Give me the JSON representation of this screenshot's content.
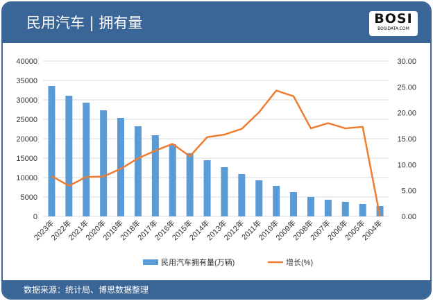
{
  "header": {
    "title": "民用汽车 | 拥有量",
    "logo_text": "BOSI",
    "logo_sub": "BOSIDATA.COM"
  },
  "footer": {
    "source": "数据来源：统计局、博思数据整理"
  },
  "chart_data": {
    "type": "bar+line",
    "categories": [
      "2023年",
      "2022年",
      "2021年",
      "2020年",
      "2019年",
      "2018年",
      "2017年",
      "2016年",
      "2015年",
      "2014年",
      "2013年",
      "2012年",
      "2011年",
      "2010年",
      "2009年",
      "2008年",
      "2007年",
      "2006年",
      "2005年",
      "2004年"
    ],
    "series": [
      {
        "name": "民用汽车拥有量(万辆)",
        "type": "bar",
        "axis": "left",
        "color": "#5b9bd5",
        "values": [
          33570,
          31070,
          29290,
          27320,
          25360,
          23210,
          20890,
          18570,
          16280,
          14460,
          12680,
          10890,
          9290,
          7860,
          6250,
          5000,
          4290,
          3750,
          3210,
          2680
        ]
      },
      {
        "name": "增长(%)",
        "type": "line",
        "axis": "right",
        "color": "#ed7d31",
        "values": [
          7.8,
          5.9,
          7.6,
          7.7,
          9.2,
          11.2,
          12.7,
          14.0,
          11.6,
          15.3,
          15.8,
          16.9,
          20.1,
          24.3,
          23.2,
          17.0,
          18.0,
          17.0,
          17.3,
          0.0
        ]
      }
    ],
    "left_axis": {
      "ylim": [
        0,
        40000
      ],
      "ticks": [
        "0",
        "5000",
        "10000",
        "15000",
        "20000",
        "25000",
        "30000",
        "35000",
        "40000"
      ]
    },
    "right_axis": {
      "ylim": [
        0,
        30
      ],
      "ticks": [
        "0.00",
        "5.00",
        "10.00",
        "15.00",
        "20.00",
        "25.00",
        "30.00"
      ]
    },
    "grid": true,
    "legend": "bottom"
  }
}
